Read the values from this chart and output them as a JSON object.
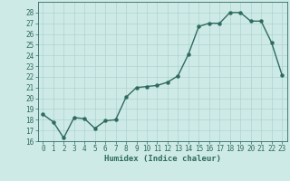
{
  "x": [
    0,
    1,
    2,
    3,
    4,
    5,
    6,
    7,
    8,
    9,
    10,
    11,
    12,
    13,
    14,
    15,
    16,
    17,
    18,
    19,
    20,
    21,
    22,
    23
  ],
  "y": [
    18.5,
    17.8,
    16.3,
    18.2,
    18.1,
    17.2,
    17.9,
    18.0,
    20.1,
    21.0,
    21.1,
    21.2,
    21.5,
    22.1,
    24.1,
    26.7,
    27.0,
    27.0,
    28.0,
    28.0,
    27.2,
    27.2,
    25.2,
    22.2
  ],
  "line_color": "#2e6b5e",
  "marker": "o",
  "markersize": 2.2,
  "linewidth": 1.0,
  "bg_color": "#ceeae7",
  "grid_color": "#aed4d0",
  "xlabel": "Humidex (Indice chaleur)",
  "ylim": [
    16,
    29
  ],
  "xlim": [
    -0.5,
    23.5
  ],
  "yticks": [
    16,
    17,
    18,
    19,
    20,
    21,
    22,
    23,
    24,
    25,
    26,
    27,
    28
  ],
  "xticks": [
    0,
    1,
    2,
    3,
    4,
    5,
    6,
    7,
    8,
    9,
    10,
    11,
    12,
    13,
    14,
    15,
    16,
    17,
    18,
    19,
    20,
    21,
    22,
    23
  ],
  "tick_labelsize": 5.5,
  "xlabel_fontsize": 6.5
}
